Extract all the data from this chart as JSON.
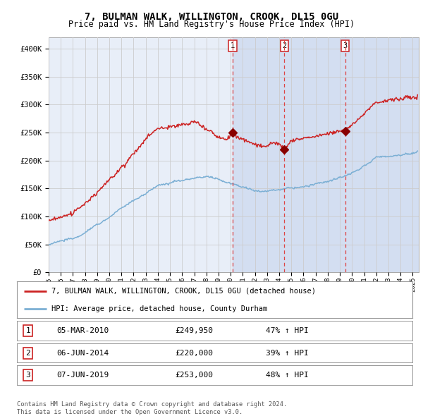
{
  "title": "7, BULMAN WALK, WILLINGTON, CROOK, DL15 0GU",
  "subtitle": "Price paid vs. HM Land Registry's House Price Index (HPI)",
  "ylabel_ticks": [
    "£0",
    "£50K",
    "£100K",
    "£150K",
    "£200K",
    "£250K",
    "£300K",
    "£350K",
    "£400K"
  ],
  "ytick_vals": [
    0,
    50000,
    100000,
    150000,
    200000,
    250000,
    300000,
    350000,
    400000
  ],
  "ylim": [
    0,
    420000
  ],
  "xlim_start": 1995.0,
  "xlim_end": 2025.5,
  "sale_date_floats": [
    2010.17,
    2014.43,
    2019.43
  ],
  "sale_prices": [
    249950,
    220000,
    253000
  ],
  "sale_labels": [
    "1",
    "2",
    "3"
  ],
  "vline_color": "#dd4444",
  "hpi_color": "#7bafd4",
  "price_color": "#cc2222",
  "background_color": "#ffffff",
  "plot_bg_color": "#e8eef8",
  "shade_color": "#d0dcf0",
  "grid_color": "#cccccc",
  "legend1_text": "7, BULMAN WALK, WILLINGTON, CROOK, DL15 0GU (detached house)",
  "legend2_text": "HPI: Average price, detached house, County Durham",
  "table_rows": [
    [
      "1",
      "05-MAR-2010",
      "£249,950",
      "47% ↑ HPI"
    ],
    [
      "2",
      "06-JUN-2014",
      "£220,000",
      "39% ↑ HPI"
    ],
    [
      "3",
      "07-JUN-2019",
      "£253,000",
      "48% ↑ HPI"
    ]
  ],
  "footer_text": "Contains HM Land Registry data © Crown copyright and database right 2024.\nThis data is licensed under the Open Government Licence v3.0.",
  "xtick_years": [
    1995,
    1996,
    1997,
    1998,
    1999,
    2000,
    2001,
    2002,
    2003,
    2004,
    2005,
    2006,
    2007,
    2008,
    2009,
    2010,
    2011,
    2012,
    2013,
    2014,
    2015,
    2016,
    2017,
    2018,
    2019,
    2020,
    2021,
    2022,
    2023,
    2024,
    2025
  ]
}
